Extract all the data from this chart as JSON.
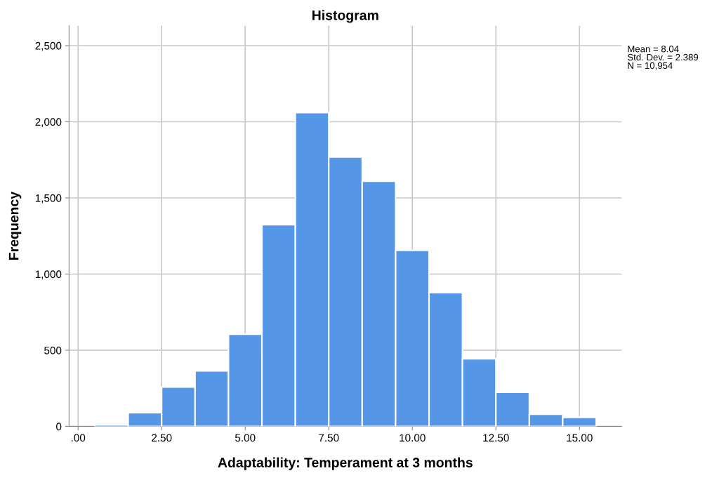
{
  "chart_data": {
    "type": "histogram",
    "title": "Histogram",
    "xlabel": "Adaptability: Temperament at 3 months",
    "ylabel": "Frequency",
    "bins": [
      0.5,
      1.5,
      2.5,
      3.5,
      4.5,
      5.5,
      6.5,
      7.5,
      8.5,
      9.5,
      10.5,
      11.5,
      12.5,
      13.5,
      14.5,
      15.5
    ],
    "values": [
      12,
      90,
      258,
      364,
      605,
      1324,
      2060,
      1768,
      1609,
      1156,
      878,
      444,
      224,
      79,
      59
    ],
    "color": "#5596e6",
    "xlim": [
      -0.27,
      16.26
    ],
    "ylim": [
      0,
      2630
    ],
    "xticks": [
      {
        "value": 0,
        "label": ".00"
      },
      {
        "value": 2.5,
        "label": "2.50"
      },
      {
        "value": 5,
        "label": "5.00"
      },
      {
        "value": 7.5,
        "label": "7.50"
      },
      {
        "value": 10,
        "label": "10.00"
      },
      {
        "value": 12.5,
        "label": "12.50"
      },
      {
        "value": 15,
        "label": "15.00"
      }
    ],
    "yticks": [
      0,
      500,
      {
        "value": 1000,
        "label": "1,000"
      },
      {
        "value": 1500,
        "label": "1,500"
      },
      {
        "value": 2000,
        "label": "2,000"
      },
      {
        "value": 2500,
        "label": "2,500"
      }
    ],
    "grid": true,
    "annotations": [
      "Mean = 8.04\nStd. Dev. = 2.389\nN = 10,954"
    ]
  }
}
